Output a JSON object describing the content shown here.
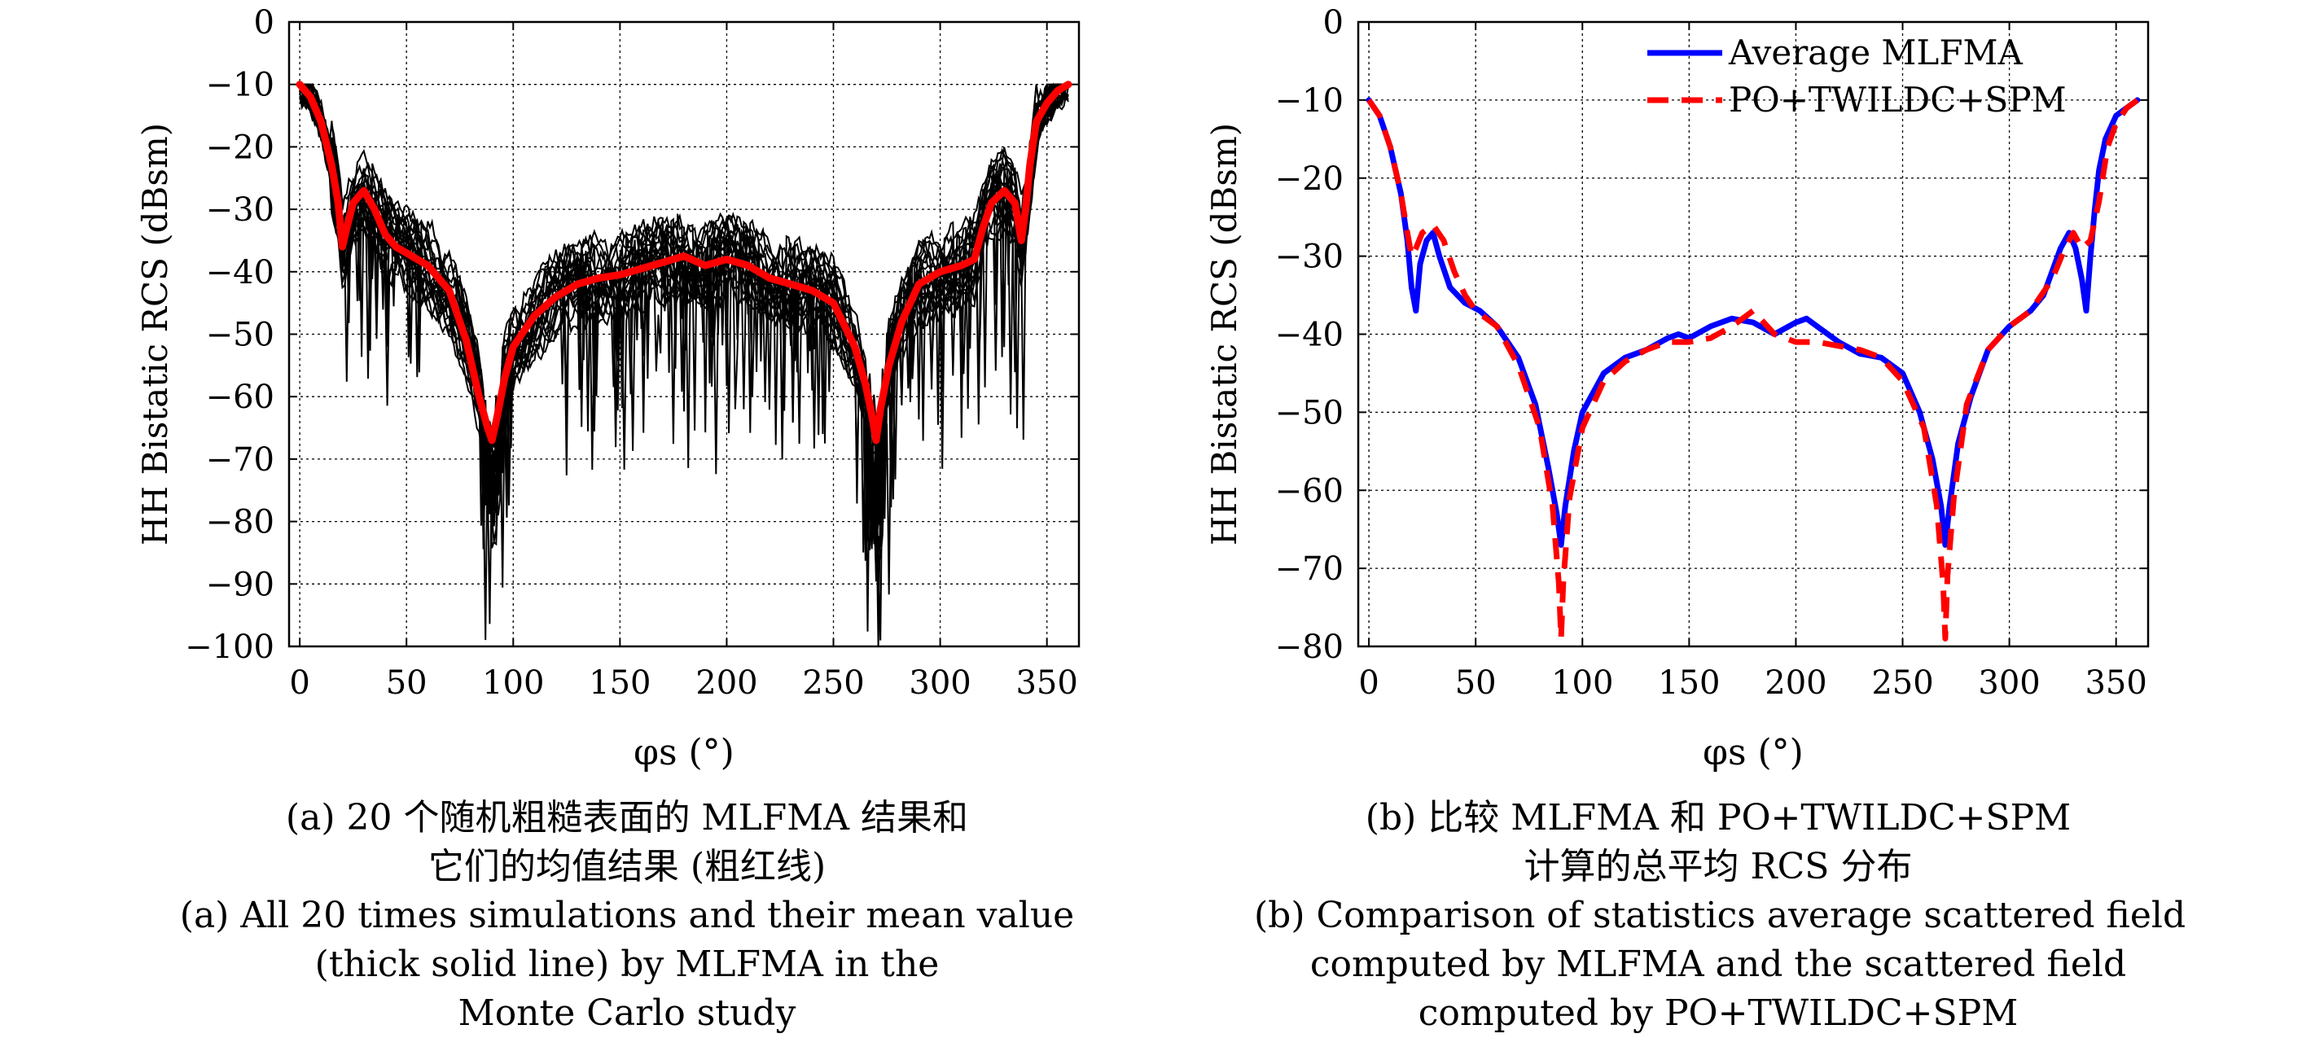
{
  "chart_data": [
    {
      "type": "line",
      "panel": "a",
      "xlabel": "φs (°)",
      "ylabel": "HH Bistatic RCS (dBsm)",
      "xlim": [
        -5,
        365
      ],
      "ylim": [
        -100,
        0
      ],
      "xticks": [
        0,
        50,
        100,
        150,
        200,
        250,
        300,
        350
      ],
      "yticks": [
        0,
        -10,
        -20,
        -30,
        -40,
        -50,
        -60,
        -70,
        -80,
        -90,
        -100
      ],
      "xtick_labels": [
        "0",
        "50",
        "100",
        "150",
        "200",
        "250",
        "300",
        "350"
      ],
      "ytick_labels": [
        "0",
        "−10",
        "−20",
        "−30",
        "−40",
        "−50",
        "−60",
        "−70",
        "−80",
        "−90",
        "−100"
      ],
      "grid": true,
      "series": [
        {
          "role": "mean",
          "color": "#ff0000",
          "x": [
            0,
            5,
            10,
            15,
            18,
            20,
            22,
            25,
            30,
            35,
            40,
            45,
            50,
            60,
            70,
            78,
            84,
            88,
            90,
            92,
            96,
            100,
            110,
            120,
            130,
            140,
            150,
            160,
            170,
            180,
            190,
            200,
            210,
            220,
            230,
            240,
            250,
            260,
            265,
            268,
            270,
            272,
            276,
            282,
            290,
            300,
            310,
            316,
            320,
            324,
            330,
            335,
            338,
            340,
            342,
            345,
            350,
            355,
            360
          ],
          "y": [
            -10,
            -12,
            -16,
            -23,
            -29,
            -36,
            -33,
            -29,
            -27,
            -30,
            -34,
            -36,
            -37,
            -39,
            -43,
            -51,
            -60,
            -65,
            -67,
            -64,
            -57,
            -52,
            -47,
            -44,
            -42,
            -41,
            -40.5,
            -39.5,
            -38.5,
            -37.5,
            -39,
            -38,
            -39,
            -41,
            -42,
            -43,
            -45,
            -52,
            -58,
            -63,
            -67,
            -62,
            -55,
            -48,
            -42,
            -40,
            -39,
            -38,
            -33,
            -29,
            -27,
            -29,
            -35,
            -30,
            -23,
            -16,
            -13,
            -11,
            -10
          ]
        },
        {
          "role": "realization",
          "color": "#000000",
          "count": 20
        }
      ]
    },
    {
      "type": "line",
      "panel": "b",
      "xlabel": "φs (°)",
      "ylabel": "HH Bistatic RCS (dBsm)",
      "xlim": [
        -5,
        365
      ],
      "ylim": [
        -80,
        0
      ],
      "xticks": [
        0,
        50,
        100,
        150,
        200,
        250,
        300,
        350
      ],
      "yticks": [
        0,
        -10,
        -20,
        -30,
        -40,
        -50,
        -60,
        -70,
        -80
      ],
      "xtick_labels": [
        "0",
        "50",
        "100",
        "150",
        "200",
        "250",
        "300",
        "350"
      ],
      "ytick_labels": [
        "0",
        "−10",
        "−20",
        "−30",
        "−40",
        "−50",
        "−60",
        "−70",
        "−80"
      ],
      "grid": true,
      "legend_position": "top-right",
      "series": [
        {
          "name": "Average MLFMA",
          "color": "#0000ff",
          "style": "solid",
          "x": [
            0,
            5,
            10,
            15,
            18,
            20,
            22,
            24,
            27,
            30,
            33,
            38,
            45,
            52,
            60,
            70,
            78,
            84,
            88,
            90,
            92,
            96,
            100,
            110,
            120,
            130,
            140,
            145,
            150,
            160,
            170,
            180,
            190,
            200,
            205,
            210,
            220,
            230,
            240,
            250,
            258,
            264,
            268,
            270,
            272,
            276,
            282,
            290,
            300,
            310,
            316,
            320,
            324,
            328,
            331,
            334,
            336,
            338,
            340,
            342,
            345,
            350,
            355,
            360
          ],
          "y": [
            -10,
            -12,
            -16,
            -22,
            -28,
            -34,
            -37,
            -31,
            -28,
            -27,
            -30,
            -34,
            -36,
            -37,
            -39,
            -43,
            -49,
            -57,
            -63,
            -67,
            -62,
            -55,
            -50,
            -45,
            -43,
            -42,
            -40.5,
            -40,
            -40.5,
            -39,
            -38,
            -38.5,
            -40,
            -38.5,
            -38,
            -39,
            -41,
            -42.5,
            -43,
            -45,
            -50,
            -56,
            -62,
            -67,
            -62,
            -54,
            -48,
            -42,
            -39,
            -37,
            -35,
            -32,
            -29,
            -27,
            -29,
            -33,
            -37,
            -30,
            -24,
            -19,
            -15,
            -12,
            -11,
            -10
          ]
        },
        {
          "name": "PO+TWILDC+SPM",
          "color": "#ff0000",
          "style": "dashed",
          "x": [
            0,
            5,
            10,
            15,
            18,
            20,
            22,
            25,
            30,
            35,
            40,
            45,
            50,
            60,
            70,
            80,
            86,
            89,
            90,
            91,
            94,
            100,
            110,
            120,
            130,
            140,
            150,
            160,
            170,
            175,
            180,
            185,
            190,
            200,
            210,
            220,
            230,
            240,
            250,
            260,
            266,
            269,
            270,
            271,
            274,
            280,
            290,
            300,
            310,
            320,
            326,
            330,
            334,
            338,
            342,
            346,
            350,
            355,
            360
          ],
          "y": [
            -10,
            -12,
            -16,
            -22,
            -27,
            -30,
            -29,
            -27,
            -26,
            -28,
            -32,
            -35,
            -37,
            -39,
            -44,
            -52,
            -62,
            -72,
            -79,
            -72,
            -61,
            -52,
            -46,
            -43.5,
            -42,
            -41,
            -41,
            -40.5,
            -39,
            -38,
            -37,
            -38.5,
            -40,
            -41,
            -41,
            -41.5,
            -42,
            -43,
            -46,
            -52,
            -62,
            -72,
            -79,
            -71,
            -61,
            -49,
            -42,
            -39,
            -37,
            -33,
            -29,
            -27,
            -29,
            -28,
            -23,
            -16,
            -13,
            -11,
            -10
          ]
        }
      ]
    }
  ],
  "captions": {
    "a": {
      "zh_line1": "(a) 20 个随机粗糙表面的 MLFMA 结果和",
      "zh_line2": "它们的均值结果 (粗红线)",
      "en_line1": "(a) All 20 times simulations and their mean value",
      "en_line2": "(thick solid line) by MLFMA in the",
      "en_line3": "Monte Carlo study"
    },
    "b": {
      "zh_line1": "(b) 比较 MLFMA 和 PO+TWILDC+SPM",
      "zh_line2": "计算的总平均 RCS 分布",
      "en_line1": "(b) Comparison of statistics average scattered field",
      "en_line2": "computed by MLFMA and the scattered field",
      "en_line3": "computed by PO+TWILDC+SPM"
    }
  }
}
